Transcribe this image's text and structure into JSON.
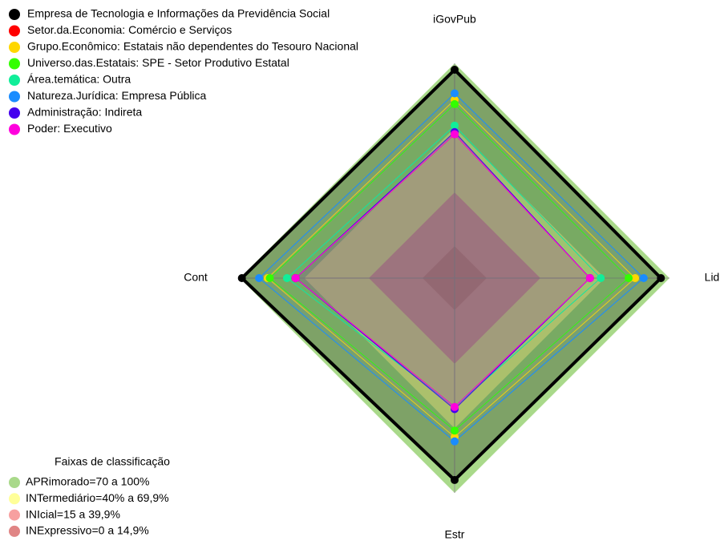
{
  "chart_data": {
    "type": "radar",
    "axes": [
      "iGovPub",
      "Lid",
      "Estr",
      "Cont"
    ],
    "rlim": [
      0,
      100
    ],
    "series": [
      {
        "name": "Empresa de Tecnologia e Informações da Previdência Social",
        "color": "#000000",
        "values": [
          97,
          96,
          94,
          99
        ]
      },
      {
        "name": "Setor.da.Economia: Comércio e Serviços",
        "color": "#ff0000",
        "values": [
          67,
          63,
          60,
          74
        ]
      },
      {
        "name": "Grupo.Econômico: Estatais não dependentes do Tesouro Nacional",
        "color": "#ffd700",
        "values": [
          83,
          84,
          74,
          87
        ]
      },
      {
        "name": "Universo.das.Estatais: SPE - Setor Produtivo Estatal",
        "color": "#33ff00",
        "values": [
          81,
          81,
          71,
          86
        ]
      },
      {
        "name": "Área.temática: Outra",
        "color": "#11ee99",
        "values": [
          71,
          68,
          60,
          78
        ]
      },
      {
        "name": "Natureza.Jurídica: Empresa Pública",
        "color": "#1a8cff",
        "values": [
          86,
          88,
          76,
          91
        ]
      },
      {
        "name": "Administração: Indireta",
        "color": "#4400ee",
        "values": [
          68,
          63,
          61,
          74
        ]
      },
      {
        "name": "Poder: Executivo",
        "color": "#ff00dd",
        "values": [
          67,
          63,
          60,
          74
        ]
      }
    ],
    "bands_title": "Faixas de classificação",
    "bands": [
      {
        "label": "APRimorado=70 a 100%",
        "color": "#a9d98a",
        "range": [
          70,
          100
        ]
      },
      {
        "label": "INTermediário=40% a 69,9%",
        "color": "#ffff99",
        "range": [
          40,
          69.9
        ]
      },
      {
        "label": "INIcial=15 a 39,9%",
        "color": "#f7a0a0",
        "range": [
          15,
          39.9
        ]
      },
      {
        "label": "INExpressivo=0 a 14,9%",
        "color": "#e08585",
        "range": [
          0,
          14.9
        ]
      }
    ]
  }
}
